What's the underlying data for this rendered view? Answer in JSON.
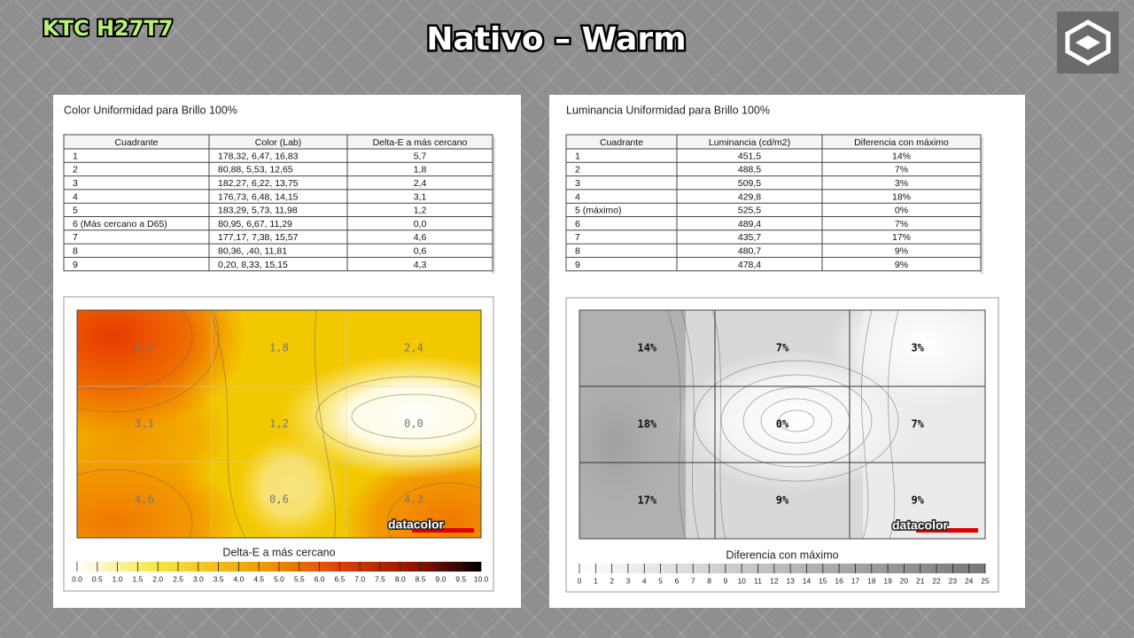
{
  "header": {
    "brand": "KTC H27T7",
    "title": "Nativo – Warm"
  },
  "left": {
    "title": "Color Uniformidad para Brillo 100%",
    "table": {
      "columns": [
        "Cuadrante",
        "Color (Lab)",
        "Delta-E a más cercano"
      ],
      "rows": [
        [
          "1",
          "178,32,  6,47,  16,83",
          "5,7"
        ],
        [
          "2",
          "80,88,  5,53,  12,65",
          "1,8"
        ],
        [
          "3",
          "182,27,  6,22,  13,75",
          "2,4"
        ],
        [
          "4",
          "176,73,  6,48,  14,15",
          "3,1"
        ],
        [
          "5",
          "183,29,  5,73,  11,98",
          "1,2"
        ],
        [
          "6 (Más cercano a D65)",
          "80,95,  6,67,  11,29",
          "0,0"
        ],
        [
          "7",
          "177,17,  7,38,  15,57",
          "4,6"
        ],
        [
          "8",
          "80,36,   ,40,  11,81",
          "0,6"
        ],
        [
          "9",
          "0,20,  8,33,  15,15",
          "4,3"
        ]
      ]
    },
    "map": {
      "cells": [
        "5,7",
        "1,8",
        "2,4",
        "3,1",
        "1,2",
        "0,0",
        "4,6",
        "0,6",
        "4,3"
      ],
      "logo": "datacolor",
      "caption": "Delta-E a más cercano",
      "scale": [
        "0.0",
        "0.5",
        "1.0",
        "1.5",
        "2.0",
        "2.5",
        "3.0",
        "3.5",
        "4.0",
        "4.5",
        "5.0",
        "5.5",
        "6.0",
        "6.5",
        "7.0",
        "7.5",
        "8.0",
        "8.5",
        "9.0",
        "9.5",
        "10.0"
      ]
    }
  },
  "right": {
    "title": "Luminancia Uniformidad para Brillo 100%",
    "table": {
      "columns": [
        "Cuadrante",
        "Luminancia (cd/m2)",
        "Diferencia con máximo"
      ],
      "rows": [
        [
          "1",
          "451,5",
          "14%"
        ],
        [
          "2",
          "488,5",
          "7%"
        ],
        [
          "3",
          "509,5",
          "3%"
        ],
        [
          "4",
          "429,8",
          "18%"
        ],
        [
          "5 (máximo)",
          "525,5",
          "0%"
        ],
        [
          "6",
          "489,4",
          "7%"
        ],
        [
          "7",
          "435,7",
          "17%"
        ],
        [
          "8",
          "480,7",
          "9%"
        ],
        [
          "9",
          "478,4",
          "9%"
        ]
      ]
    },
    "map": {
      "cells": [
        "14%",
        "7%",
        "3%",
        "18%",
        "0%",
        "7%",
        "17%",
        "9%",
        "9%"
      ],
      "logo": "datacolor",
      "caption": "Diferencia con máximo",
      "scale": [
        "0",
        "1",
        "2",
        "3",
        "4",
        "5",
        "6",
        "7",
        "8",
        "9",
        "10",
        "11",
        "12",
        "13",
        "14",
        "15",
        "16",
        "17",
        "18",
        "19",
        "20",
        "21",
        "22",
        "23",
        "24",
        "25"
      ]
    }
  }
}
